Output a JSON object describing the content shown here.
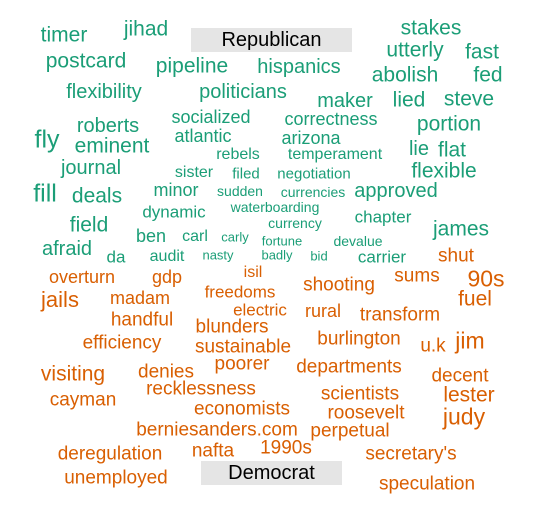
{
  "chart_data": {
    "type": "wordcloud",
    "groups": [
      {
        "name": "Republican",
        "color": "#1b9e77",
        "words": [
          "timer",
          "jihad",
          "stakes",
          "utterly",
          "fast",
          "postcard",
          "pipeline",
          "hispanics",
          "abolish",
          "fed",
          "flexibility",
          "politicians",
          "maker",
          "lied",
          "steve",
          "socialized",
          "correctness",
          "roberts",
          "portion",
          "fly",
          "eminent",
          "atlantic",
          "arizona",
          "lie",
          "flat",
          "rebels",
          "temperament",
          "journal",
          "sister",
          "filed",
          "negotiation",
          "flexible",
          "fill",
          "deals",
          "minor",
          "sudden",
          "currencies",
          "approved",
          "dynamic",
          "waterboarding",
          "chapter",
          "field",
          "currency",
          "james",
          "ben",
          "carl",
          "carly",
          "fortune",
          "devalue",
          "afraid",
          "da",
          "audit",
          "nasty",
          "badly",
          "bid",
          "carrier"
        ]
      },
      {
        "name": "Democrat",
        "color": "#d95f02",
        "words": [
          "shut",
          "isil",
          "overturn",
          "gdp",
          "shooting",
          "sums",
          "90s",
          "jails",
          "madam",
          "freedoms",
          "fuel",
          "electric",
          "rural",
          "transform",
          "handful",
          "blunders",
          "burlington",
          "jim",
          "efficiency",
          "sustainable",
          "u.k",
          "poorer",
          "departments",
          "visiting",
          "denies",
          "decent",
          "recklessness",
          "cayman",
          "scientists",
          "lester",
          "economists",
          "roosevelt",
          "judy",
          "berniesanders.com",
          "perpetual",
          "deregulation",
          "nafta",
          "1990s",
          "secretary's",
          "unemployed",
          "speculation"
        ]
      }
    ]
  }
}
